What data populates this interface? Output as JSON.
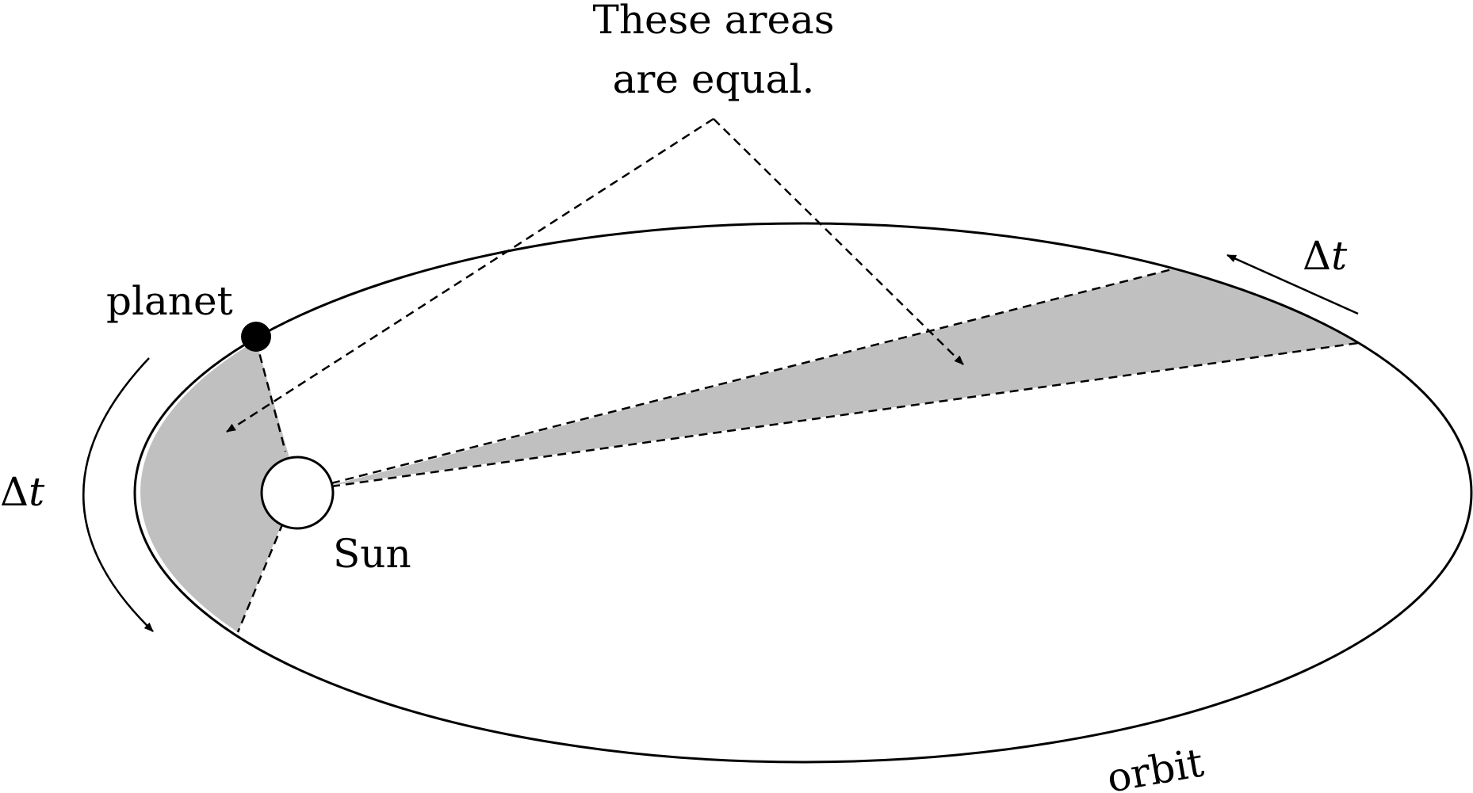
{
  "annotation": {
    "line1": "These areas",
    "line2": "are equal."
  },
  "labels": {
    "planet": "planet",
    "sun": "Sun",
    "orbit": "orbit"
  },
  "delta_left": {
    "symbol": "Δ",
    "var": "t"
  },
  "delta_right": {
    "symbol": "Δ",
    "var": "t"
  },
  "colors": {
    "shaded_area": "#c0c0c0",
    "line": "#000000",
    "planet": "#000000",
    "sun_fill": "#ffffff",
    "background": "#ffffff"
  }
}
